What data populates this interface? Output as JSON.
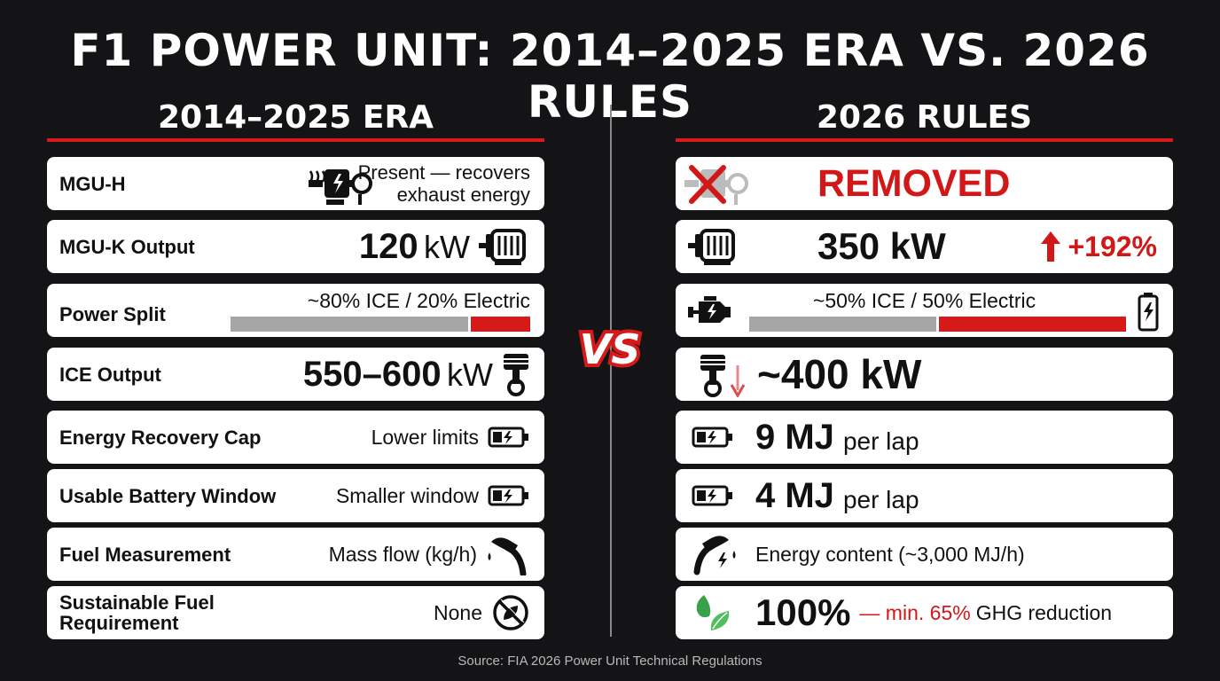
{
  "title": "F1 POWER UNIT: 2014–2025 ERA VS. 2026 RULES",
  "left": {
    "heading": "2014–2025 ERA",
    "rows": {
      "mguh": {
        "label": "MGU-H",
        "value_line1": "Present — recovers",
        "value_line2": "exhaust energy",
        "icon": "mgu-h-icon"
      },
      "mguk": {
        "label": "MGU-K Output",
        "number": "120",
        "unit": "kW",
        "icon": "electric-motor-icon"
      },
      "split": {
        "label": "Power Split",
        "value": "~80% ICE / 20% Electric",
        "ice_fraction": 0.8,
        "electric_fraction": 0.2
      },
      "ice": {
        "label": "ICE Output",
        "number": "550–600",
        "unit": "kW",
        "icon": "piston-icon"
      },
      "recovery": {
        "label": "Energy Recovery Cap",
        "value": "Lower limits",
        "icon": "battery-charge-icon"
      },
      "battery": {
        "label": "Usable Battery Window",
        "value": "Smaller window",
        "icon": "battery-charge-icon"
      },
      "fuel": {
        "label": "Fuel Measurement",
        "value": "Mass flow (kg/h)",
        "icon": "fuel-nozzle-icon"
      },
      "sustainable": {
        "label_line1": "Sustainable Fuel",
        "label_line2": "Requirement",
        "value": "None",
        "icon": "no-leaf-icon"
      }
    }
  },
  "vs_text": "VS",
  "right": {
    "heading": "2026 RULES",
    "rows": {
      "mguh": {
        "value": "REMOVED",
        "icon": "mgu-h-removed-icon"
      },
      "mguk": {
        "value": "350 kW",
        "change": "+192%",
        "icon": "electric-motor-icon",
        "change_icon": "up-arrow-icon"
      },
      "split": {
        "value": "~50% ICE / 50% Electric",
        "ice_fraction": 0.5,
        "electric_fraction": 0.5,
        "icon": "engine-icon",
        "end_icon": "battery-icon"
      },
      "ice": {
        "value": "~400 kW",
        "icon": "piston-down-icon"
      },
      "recovery": {
        "number": "9 MJ",
        "suffix": "per lap",
        "icon": "battery-charge-icon"
      },
      "battery": {
        "number": "4 MJ",
        "suffix": "per lap",
        "icon": "battery-charge-icon"
      },
      "fuel": {
        "value": "Energy content (~3,000 MJ/h)",
        "icon": "fuel-nozzle-lightning-icon"
      },
      "sustainable": {
        "number": "100%",
        "dash": "— min. 65%",
        "suffix": "GHG reduction",
        "icon": "leaf-icon"
      }
    }
  },
  "colors": {
    "accent_red": "#d61a1a",
    "bar_gray": "#a6a6a6",
    "background": "#141416",
    "leaf_green": "#3aa14a"
  },
  "source": "Source: FIA 2026 Power Unit Technical Regulations"
}
